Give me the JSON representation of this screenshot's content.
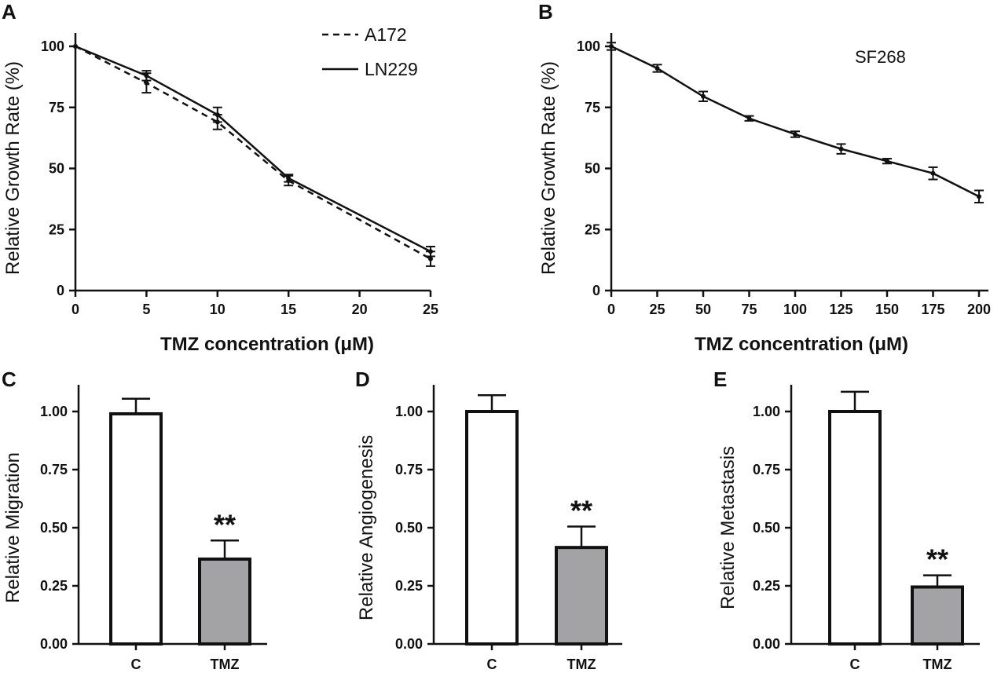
{
  "chart_data": [
    {
      "panel": "A",
      "type": "line",
      "xlabel": "TMZ concentration (μM)",
      "ylabel": "Relative Growth Rate (%)",
      "xlim": [
        0,
        25.5
      ],
      "ylim": [
        0,
        105
      ],
      "x_ticks": [
        0,
        5,
        10,
        15,
        20,
        25
      ],
      "y_ticks": [
        0,
        25,
        50,
        75,
        100
      ],
      "series": [
        {
          "name": "A172",
          "style": "dashed",
          "x": [
            0,
            5,
            10,
            15,
            25
          ],
          "values": [
            100,
            85,
            69,
            45,
            13
          ],
          "errors": [
            0,
            4,
            3,
            2,
            3
          ]
        },
        {
          "name": "LN229",
          "style": "solid",
          "x": [
            0,
            5,
            10,
            15,
            25
          ],
          "values": [
            100,
            88,
            72,
            46,
            16
          ],
          "errors": [
            0,
            2,
            3,
            1.5,
            2
          ]
        }
      ]
    },
    {
      "panel": "B",
      "type": "line",
      "annotation": "SF268",
      "xlabel": "TMZ concentration (μM)",
      "ylabel": "Relative Growth Rate (%)",
      "xlim": [
        0,
        205
      ],
      "ylim": [
        0,
        105
      ],
      "x_ticks": [
        0,
        25,
        50,
        75,
        100,
        125,
        150,
        175,
        200
      ],
      "y_ticks": [
        0,
        25,
        50,
        75,
        100
      ],
      "series": [
        {
          "name": "SF268",
          "style": "solid",
          "x": [
            0,
            25,
            50,
            75,
            100,
            125,
            150,
            175,
            200
          ],
          "values": [
            100,
            91,
            79.5,
            70.5,
            64,
            58,
            53,
            48,
            38.5
          ],
          "errors": [
            1.5,
            1.5,
            2,
            1,
            1.2,
            2,
            1,
            2.5,
            2.5
          ]
        }
      ]
    },
    {
      "panel": "C",
      "type": "bar",
      "ylabel": "Relative Migration",
      "categories": [
        "C",
        "TMZ"
      ],
      "values": [
        0.99,
        0.365
      ],
      "errors": [
        0.065,
        0.08
      ],
      "fills": [
        "#ffffff",
        "#a3a3a6"
      ],
      "significance": "**",
      "ylim": [
        0,
        1.1
      ],
      "y_ticks": [
        "0.00",
        "0.25",
        "0.50",
        "0.75",
        "1.00"
      ]
    },
    {
      "panel": "D",
      "type": "bar",
      "ylabel": "Relative Angiogenesis",
      "categories": [
        "C",
        "TMZ"
      ],
      "values": [
        1.0,
        0.415
      ],
      "errors": [
        0.07,
        0.09
      ],
      "fills": [
        "#ffffff",
        "#a3a3a6"
      ],
      "significance": "**",
      "ylim": [
        0,
        1.1
      ],
      "y_ticks": [
        "0.00",
        "0.25",
        "0.50",
        "0.75",
        "1.00"
      ]
    },
    {
      "panel": "E",
      "type": "bar",
      "ylabel": "Relative Metastasis",
      "categories": [
        "C",
        "TMZ"
      ],
      "values": [
        1.0,
        0.245
      ],
      "errors": [
        0.085,
        0.05
      ],
      "fills": [
        "#ffffff",
        "#a3a3a6"
      ],
      "significance": "**",
      "ylim": [
        0,
        1.1
      ],
      "y_ticks": [
        "0.00",
        "0.25",
        "0.50",
        "0.75",
        "1.00"
      ]
    }
  ]
}
